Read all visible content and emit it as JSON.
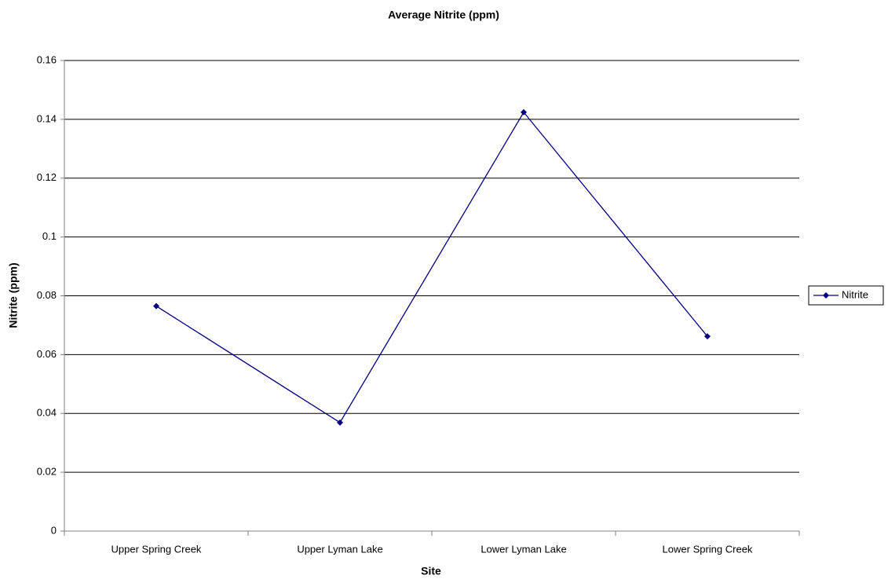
{
  "chart_data": {
    "type": "line",
    "title": "Average Nitrite (ppm)",
    "x_label": "Site",
    "y_label": "Nitrite (ppm)",
    "categories": [
      "Upper Spring Creek",
      "Upper Lyman Lake",
      "Lower Lyman Lake",
      "Lower Spring Creek"
    ],
    "series": [
      {
        "name": "Nitrite",
        "color": "#000080",
        "values": [
          0.0765,
          0.0369,
          0.1424,
          0.0662
        ]
      }
    ],
    "ylim": [
      0,
      0.16
    ],
    "yticks": [
      0,
      0.02,
      0.04,
      0.06,
      0.08,
      0.1,
      0.12,
      0.14,
      0.16
    ],
    "grid": true,
    "legend": "right"
  }
}
